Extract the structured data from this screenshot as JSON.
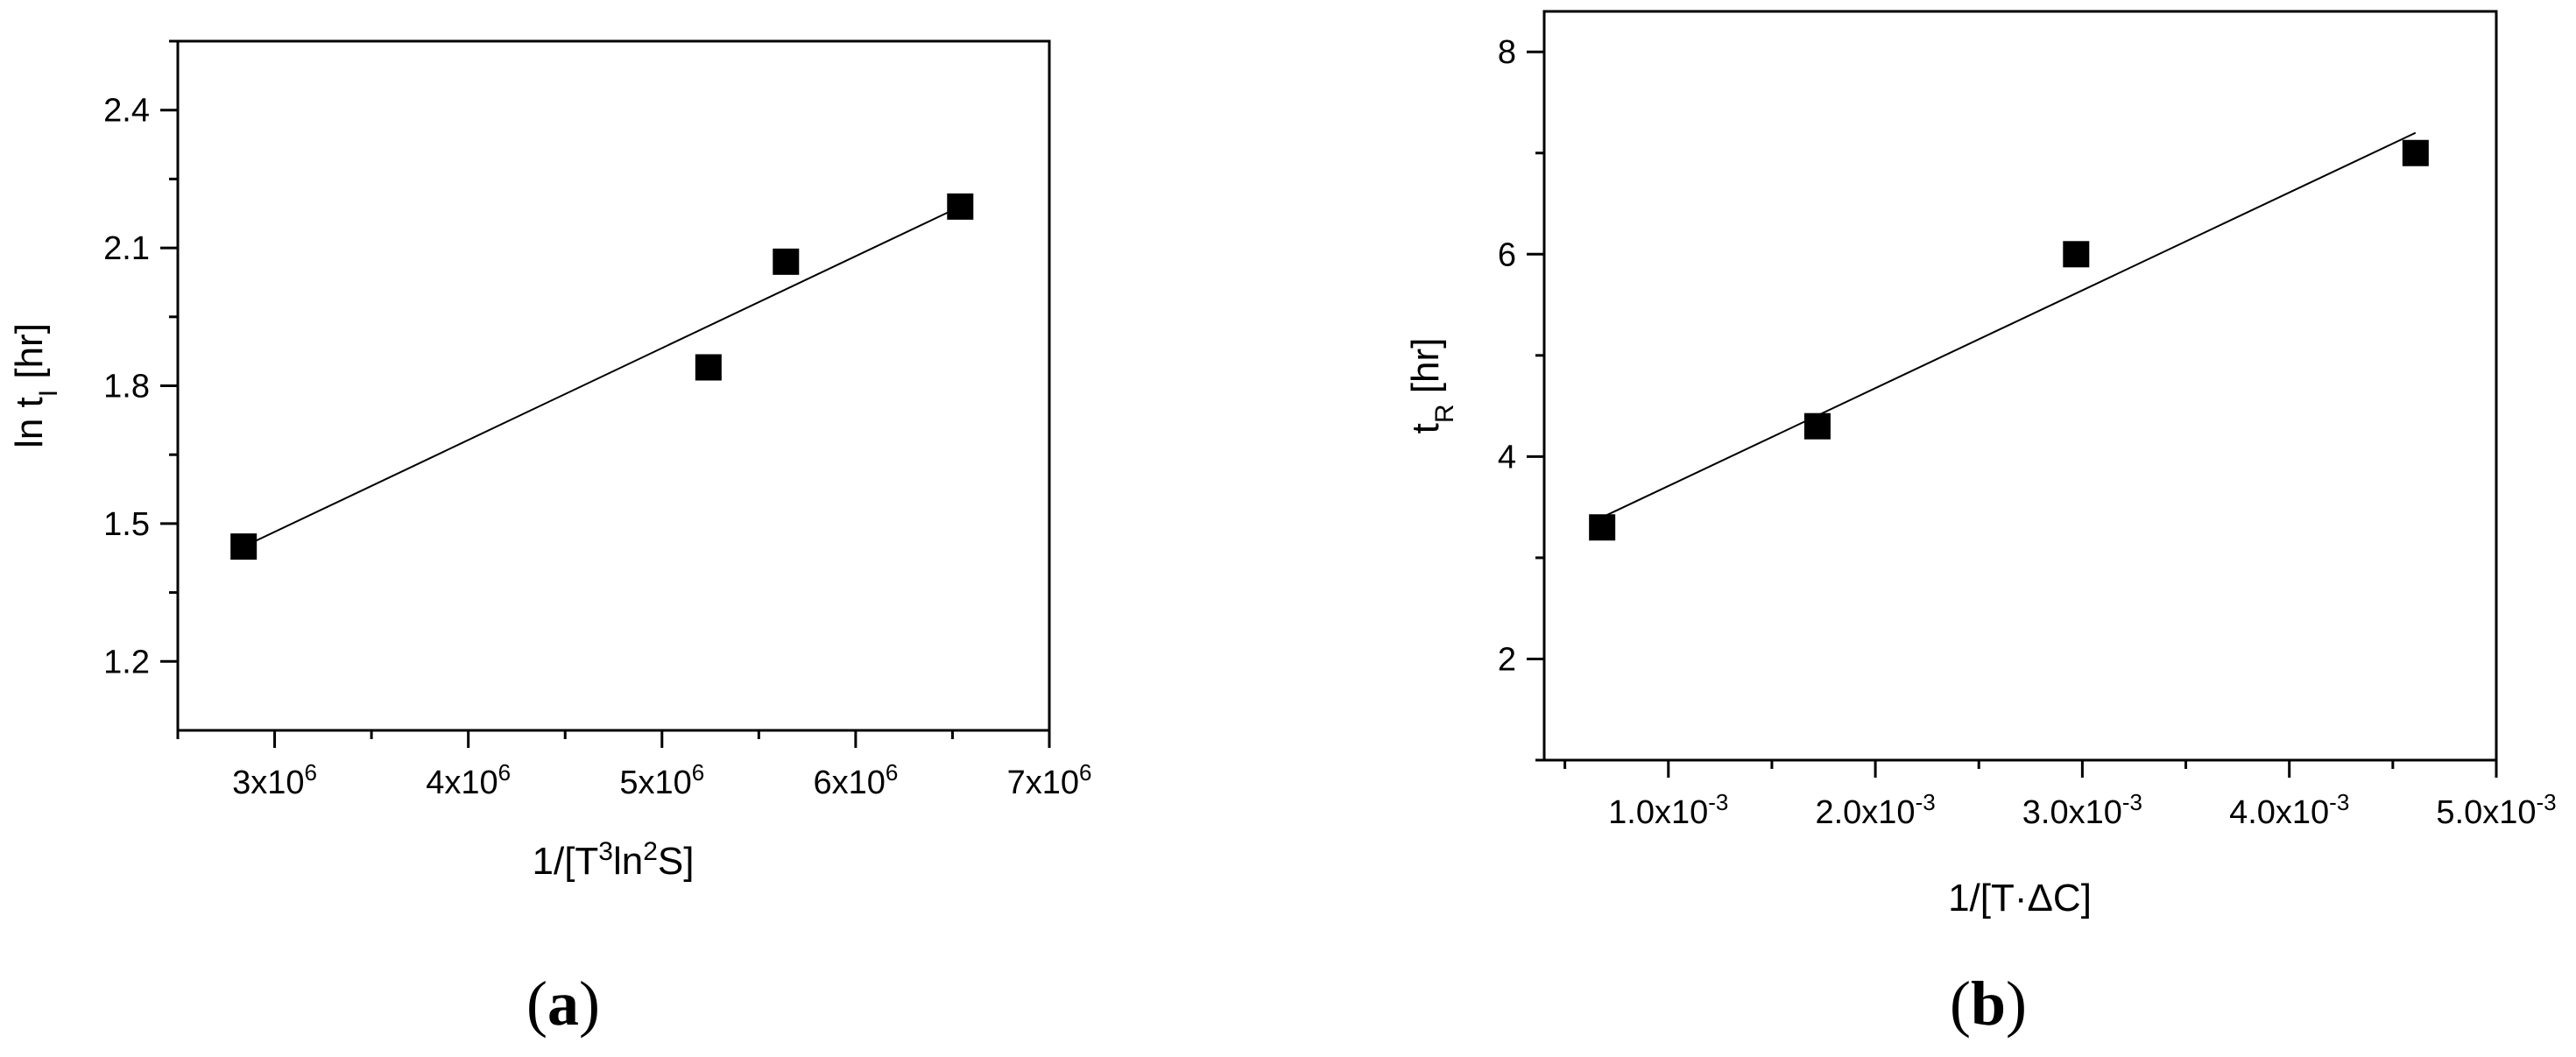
{
  "chart_data": [
    {
      "panel_label_open": "(",
      "panel_label_letter": "a",
      "panel_label_close": ")",
      "type": "scatter",
      "title": "",
      "xlabel_parts": [
        "1/[T",
        "3",
        "ln",
        "2",
        "S]"
      ],
      "ylabel_parts": [
        "ln t",
        "I",
        " [hr]"
      ],
      "xlim": [
        2500000,
        7000000
      ],
      "ylim": [
        1.05,
        2.55
      ],
      "x_ticks": [
        {
          "value": 3000000,
          "mantissa": "3x10",
          "exp": "6"
        },
        {
          "value": 4000000,
          "mantissa": "4x10",
          "exp": "6"
        },
        {
          "value": 5000000,
          "mantissa": "5x10",
          "exp": "6"
        },
        {
          "value": 6000000,
          "mantissa": "6x10",
          "exp": "6"
        },
        {
          "value": 7000000,
          "mantissa": "7x10",
          "exp": "6"
        }
      ],
      "x_minor_step": 500000,
      "y_ticks": [
        {
          "value": 1.2,
          "label": "1.2"
        },
        {
          "value": 1.5,
          "label": "1.5"
        },
        {
          "value": 1.8,
          "label": "1.8"
        },
        {
          "value": 2.1,
          "label": "2.1"
        },
        {
          "value": 2.4,
          "label": "2.4"
        }
      ],
      "y_minor_step": 0.15,
      "points": [
        {
          "x": 2840000,
          "y": 1.45
        },
        {
          "x": 5240000,
          "y": 1.84
        },
        {
          "x": 5640000,
          "y": 2.07
        },
        {
          "x": 6540000,
          "y": 2.19
        }
      ],
      "fit_line": [
        {
          "x": 2840000,
          "y": 1.45
        },
        {
          "x": 6540000,
          "y": 2.19
        }
      ],
      "grid": false,
      "legend": "none"
    },
    {
      "panel_label_open": "(",
      "panel_label_letter": "b",
      "panel_label_close": ")",
      "type": "scatter",
      "title": "",
      "xlabel_parts": [
        "1/[T·ΔC]"
      ],
      "ylabel_parts": [
        "t",
        "R",
        " [hr]"
      ],
      "xlim": [
        0.0004,
        0.005
      ],
      "ylim": [
        1.0,
        8.4
      ],
      "x_ticks": [
        {
          "value": 0.001,
          "mantissa": "1.0x10",
          "exp": "-3"
        },
        {
          "value": 0.002,
          "mantissa": "2.0x10",
          "exp": "-3"
        },
        {
          "value": 0.003,
          "mantissa": "3.0x10",
          "exp": "-3"
        },
        {
          "value": 0.004,
          "mantissa": "4.0x10",
          "exp": "-3"
        },
        {
          "value": 0.005,
          "mantissa": "5.0x10",
          "exp": "-3"
        }
      ],
      "x_minor_step": 0.0005,
      "y_ticks": [
        {
          "value": 2,
          "label": "2"
        },
        {
          "value": 4,
          "label": "4"
        },
        {
          "value": 6,
          "label": "6"
        },
        {
          "value": 8,
          "label": "8"
        }
      ],
      "y_minor_step": 1,
      "points": [
        {
          "x": 0.00068,
          "y": 3.3
        },
        {
          "x": 0.00172,
          "y": 4.3
        },
        {
          "x": 0.00297,
          "y": 6.0
        },
        {
          "x": 0.00461,
          "y": 7.0
        }
      ],
      "fit_line": [
        {
          "x": 0.00068,
          "y": 3.4
        },
        {
          "x": 0.00461,
          "y": 7.2
        }
      ],
      "grid": false,
      "legend": "none"
    }
  ]
}
